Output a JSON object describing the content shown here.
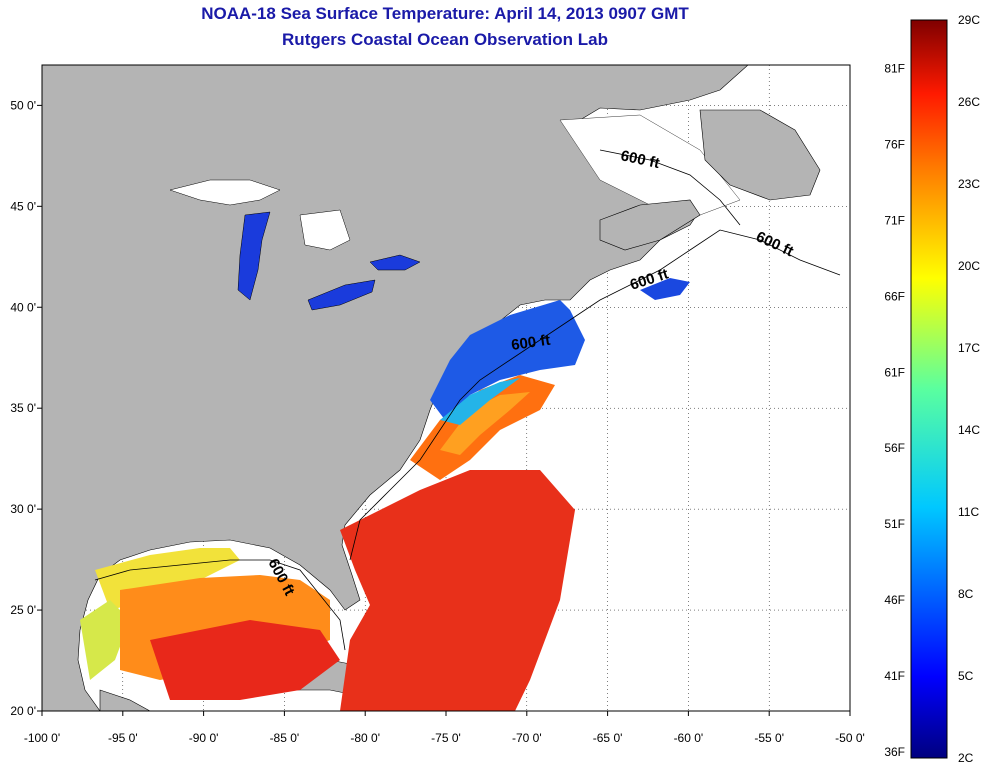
{
  "title": "NOAA-18 Sea Surface Temperature:  April 14, 2013 0907 GMT",
  "subtitle": "Rutgers Coastal Ocean Observation Lab",
  "map": {
    "lon_range": [
      -100,
      -50
    ],
    "lat_range": [
      20,
      52
    ],
    "lon_ticks": [
      "-100 0'",
      "-95 0'",
      "-90 0'",
      "-85 0'",
      "-80 0'",
      "-75 0'",
      "-70 0'",
      "-65 0'",
      "-60 0'",
      "-55 0'",
      "-50 0'"
    ],
    "lat_ticks": [
      {
        "lat": 20,
        "label": "20 0'"
      },
      {
        "lat": 25,
        "label": "25 0'"
      },
      {
        "lat": 30,
        "label": "30 0'"
      },
      {
        "lat": 35,
        "label": "35 0'"
      },
      {
        "lat": 40,
        "label": "40 0'"
      },
      {
        "lat": 45,
        "label": "45 0'"
      },
      {
        "lat": 50,
        "label": "50 0'"
      }
    ],
    "contour_labels": [
      "600 ft",
      "600 ft",
      "600 ft",
      "600 ft",
      "600 ft"
    ],
    "land_color": "#b4b4b4",
    "cloud_color": "#ffffff"
  },
  "colorbar": {
    "celsius_labels": [
      "29C",
      "26C",
      "23C",
      "20C",
      "17C",
      "14C",
      "11C",
      "8C",
      "5C",
      "2C"
    ],
    "fahrenheit_labels": [
      "81F",
      "76F",
      "71F",
      "66F",
      "61F",
      "56F",
      "51F",
      "46F",
      "41F",
      "36F"
    ],
    "min_c": 2,
    "max_c": 29
  }
}
